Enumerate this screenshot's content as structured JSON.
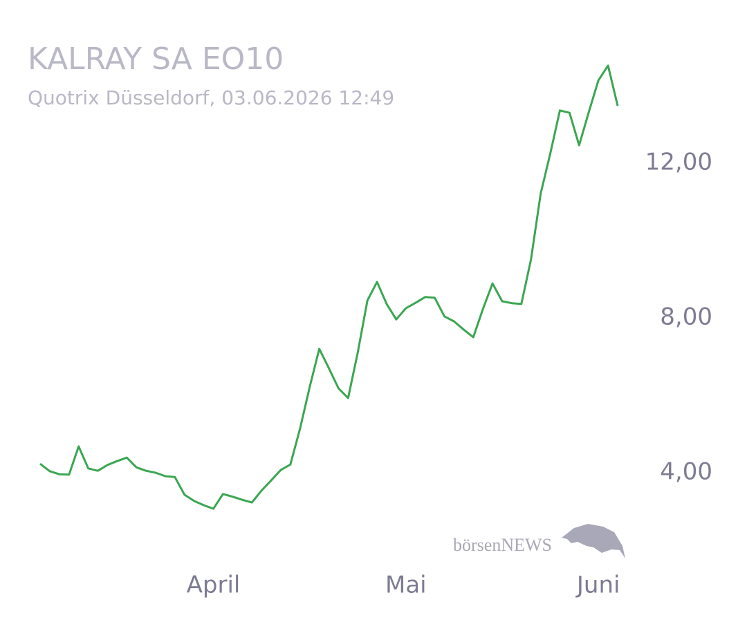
{
  "chart_data": {
    "type": "line",
    "title": "KALRAY SA EO10",
    "subtitle": "Quotrix Düsseldorf, 03.06.2026 12:49",
    "watermark": "börsenNEWS",
    "categories": [
      null,
      null,
      null,
      null,
      null,
      null,
      null,
      null,
      null,
      null,
      null,
      null,
      null,
      null,
      null,
      null,
      null,
      null,
      "April",
      null,
      null,
      null,
      null,
      null,
      null,
      null,
      null,
      null,
      null,
      null,
      null,
      null,
      null,
      null,
      null,
      null,
      null,
      null,
      "Mai",
      null,
      null,
      null,
      null,
      null,
      null,
      null,
      null,
      null,
      null,
      null,
      null,
      null,
      null,
      null,
      null,
      null,
      null,
      null,
      "Juni",
      null,
      null
    ],
    "values": [
      4.23,
      4.04,
      3.96,
      3.95,
      4.68,
      4.11,
      4.05,
      4.2,
      4.3,
      4.39,
      4.14,
      4.05,
      4.0,
      3.91,
      3.89,
      3.43,
      3.27,
      3.16,
      3.07,
      3.45,
      3.38,
      3.3,
      3.23,
      3.54,
      3.8,
      4.07,
      4.21,
      5.14,
      6.21,
      7.2,
      6.7,
      6.18,
      5.93,
      7.11,
      8.45,
      8.93,
      8.36,
      7.96,
      8.25,
      8.39,
      8.54,
      8.52,
      8.04,
      7.91,
      7.7,
      7.5,
      8.23,
      8.89,
      8.43,
      8.38,
      8.36,
      9.52,
      11.21,
      12.25,
      13.36,
      13.3,
      12.46,
      13.32,
      14.14,
      14.52,
      13.48
    ],
    "color": "#3ba651",
    "ylim": [
      1.2,
      16.2
    ],
    "yticks": [
      {
        "value": 4,
        "label": "4,00"
      },
      {
        "value": 8,
        "label": "8,00"
      },
      {
        "value": 12,
        "label": "12,00"
      }
    ],
    "grid": false
  }
}
